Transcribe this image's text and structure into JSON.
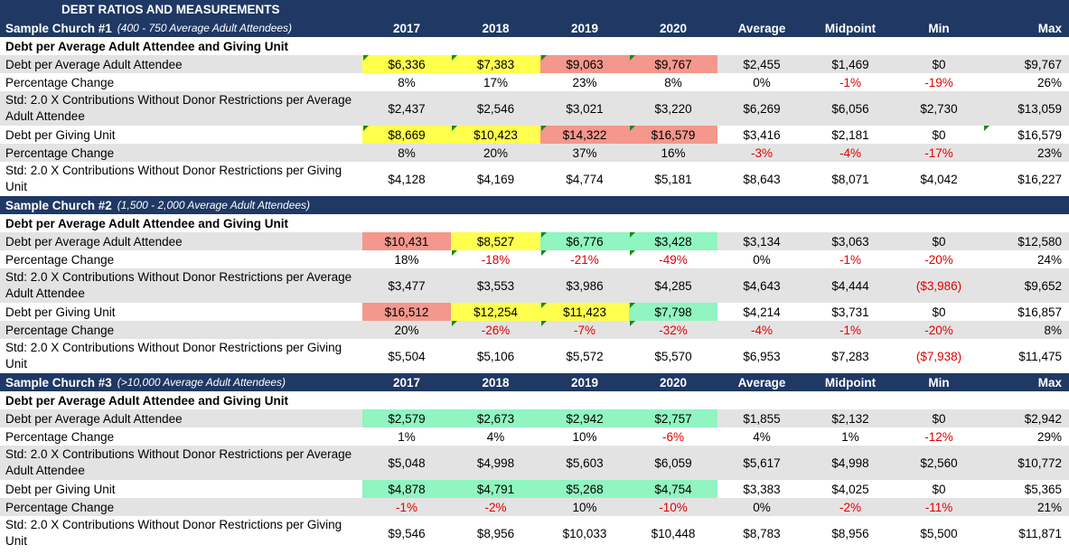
{
  "sheet": {
    "title": "DEBT RATIOS AND MEASUREMENTS",
    "year_headers": [
      "2017",
      "2018",
      "2019",
      "2020"
    ],
    "stat_headers": [
      "Average",
      "Midpoint",
      "Min",
      "Max"
    ],
    "colors": {
      "header_bg": "#1f3864",
      "yellow": "#ffff4d",
      "red": "#f4978c",
      "green": "#90f5c0",
      "negative_text": "#e00000"
    },
    "churches": [
      {
        "name": "Sample Church #1",
        "note": "(400 - 750 Average Adult Attendees)",
        "section": "Debt per Average Adult Attendee and Giving Unit",
        "rows": [
          {
            "label": "Debt per Average Adult Attendee",
            "values": [
              "$6,336",
              "$7,383",
              "$9,063",
              "$9,767",
              "$2,455",
              "$1,469",
              "$0",
              "$9,767"
            ]
          },
          {
            "label": "Percentage Change",
            "values": [
              "8%",
              "17%",
              "23%",
              "8%",
              "0%",
              "-1%",
              "-19%",
              "26%"
            ]
          },
          {
            "label": "Std: 2.0 X Contributions Without Donor Restrictions per Average Adult Attendee",
            "values": [
              "$2,437",
              "$2,546",
              "$3,021",
              "$3,220",
              "$6,269",
              "$6,056",
              "$2,730",
              "$13,059"
            ]
          },
          {
            "label": "Debt per Giving Unit",
            "values": [
              "$8,669",
              "$10,423",
              "$14,322",
              "$16,579",
              "$3,416",
              "$2,181",
              "$0",
              "$16,579"
            ]
          },
          {
            "label": "Percentage Change",
            "values": [
              "8%",
              "20%",
              "37%",
              "16%",
              "-3%",
              "-4%",
              "-17%",
              "23%"
            ]
          },
          {
            "label": "Std: 2.0 X Contributions Without Donor Restrictions per Giving Unit",
            "values": [
              "$4,128",
              "$4,169",
              "$4,774",
              "$5,181",
              "$8,643",
              "$8,071",
              "$4,042",
              "$16,227"
            ]
          }
        ]
      },
      {
        "name": "Sample Church #2",
        "note": "(1,500 - 2,000 Average Adult Attendees)",
        "section": "Debt per Average Adult Attendee and Giving Unit",
        "rows": [
          {
            "label": "Debt per Average Adult Attendee",
            "values": [
              "$10,431",
              "$8,527",
              "$6,776",
              "$3,428",
              "$3,134",
              "$3,063",
              "$0",
              "$12,580"
            ]
          },
          {
            "label": "Percentage Change",
            "values": [
              "18%",
              "-18%",
              "-21%",
              "-49%",
              "0%",
              "-1%",
              "-20%",
              "24%"
            ]
          },
          {
            "label": "Std: 2.0 X Contributions Without Donor Restrictions per Average Adult Attendee",
            "values": [
              "$3,477",
              "$3,553",
              "$3,986",
              "$4,285",
              "$4,643",
              "$4,444",
              "($3,986)",
              "$9,652"
            ]
          },
          {
            "label": "Debt per Giving Unit",
            "values": [
              "$16,512",
              "$12,254",
              "$11,423",
              "$7,798",
              "$4,214",
              "$3,731",
              "$0",
              "$16,857"
            ]
          },
          {
            "label": "Percentage Change",
            "values": [
              "20%",
              "-26%",
              "-7%",
              "-32%",
              "-4%",
              "-1%",
              "-20%",
              "8%"
            ]
          },
          {
            "label": "Std: 2.0 X Contributions Without Donor Restrictions per Giving Unit",
            "values": [
              "$5,504",
              "$5,106",
              "$5,572",
              "$5,570",
              "$6,953",
              "$7,283",
              "($7,938)",
              "$11,475"
            ]
          }
        ]
      },
      {
        "name": "Sample Church #3",
        "note": "(>10,000 Average Adult Attendees)",
        "section": "Debt per Average Adult Attendee and Giving Unit",
        "rows": [
          {
            "label": "Debt per Average Adult Attendee",
            "values": [
              "$2,579",
              "$2,673",
              "$2,942",
              "$2,757",
              "$1,855",
              "$2,132",
              "$0",
              "$2,942"
            ]
          },
          {
            "label": "Percentage Change",
            "values": [
              "1%",
              "4%",
              "10%",
              "-6%",
              "4%",
              "1%",
              "-12%",
              "29%"
            ]
          },
          {
            "label": "Std: 2.0 X Contributions Without Donor Restrictions per Average Adult Attendee",
            "values": [
              "$5,048",
              "$4,998",
              "$5,603",
              "$6,059",
              "$5,617",
              "$4,998",
              "$2,560",
              "$10,772"
            ]
          },
          {
            "label": "Debt per Giving Unit",
            "values": [
              "$4,878",
              "$4,791",
              "$5,268",
              "$4,754",
              "$3,383",
              "$4,025",
              "$0",
              "$5,365"
            ]
          },
          {
            "label": "Percentage Change",
            "values": [
              "-1%",
              "-2%",
              "10%",
              "-10%",
              "0%",
              "-2%",
              "-11%",
              "21%"
            ]
          },
          {
            "label": "Std: 2.0 X Contributions Without Donor Restrictions per Giving Unit",
            "values": [
              "$9,546",
              "$8,956",
              "$10,033",
              "$10,448",
              "$8,783",
              "$8,956",
              "$5,500",
              "$11,871"
            ]
          }
        ]
      }
    ]
  }
}
